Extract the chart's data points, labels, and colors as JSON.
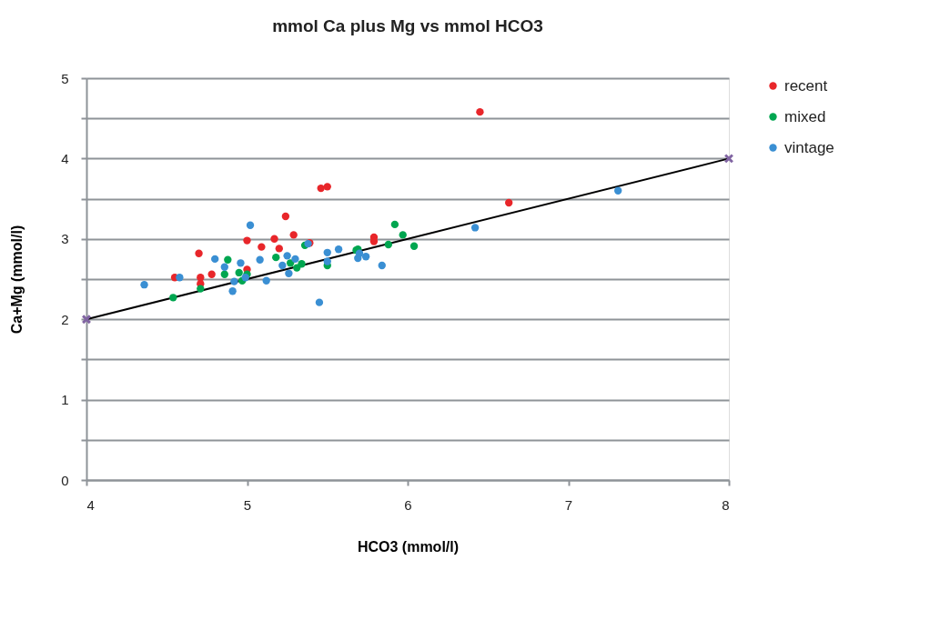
{
  "chart_data": {
    "type": "scatter",
    "title": "mmol Ca plus Mg vs mmol HCO3",
    "xlabel": "HCO3 (mmol/l)",
    "ylabel": "Ca+Mg (mmol/l)",
    "xlim": [
      4,
      8
    ],
    "xticks": [
      4,
      5,
      6,
      7,
      8
    ],
    "ylim": [
      0,
      5
    ],
    "yticks": [
      0,
      {
        "value": 0.5,
        "label": null
      },
      1,
      {
        "value": 1.5,
        "label": null
      },
      2,
      {
        "value": 2.5,
        "label": null
      },
      3,
      {
        "value": 3.5,
        "label": null
      },
      4,
      {
        "value": 4.5,
        "label": null
      },
      5
    ],
    "grid": "y",
    "legend": "right",
    "marker": "circle",
    "series": [
      {
        "name": "recent",
        "color": "#e8262a",
        "x": [
          4.55,
          4.7,
          4.71,
          4.71,
          4.78,
          5.0,
          5.0,
          5.09,
          5.17,
          5.2,
          5.24,
          5.29,
          5.39,
          5.46,
          5.5,
          5.79,
          5.79,
          6.45,
          6.63
        ],
        "values": [
          2.52,
          2.82,
          2.52,
          2.44,
          2.56,
          2.98,
          2.62,
          2.9,
          3.0,
          2.88,
          3.28,
          3.05,
          2.95,
          3.63,
          3.65,
          3.02,
          2.97,
          4.58,
          3.45
        ]
      },
      {
        "name": "mixed",
        "color": "#00a650",
        "x": [
          4.54,
          4.71,
          4.86,
          4.88,
          4.95,
          4.97,
          5.0,
          5.18,
          5.27,
          5.31,
          5.34,
          5.36,
          5.5,
          5.68,
          5.69,
          5.88,
          5.92,
          5.97,
          6.04
        ],
        "values": [
          2.27,
          2.38,
          2.56,
          2.74,
          2.58,
          2.48,
          2.56,
          2.77,
          2.7,
          2.64,
          2.69,
          2.92,
          2.67,
          2.86,
          2.87,
          2.93,
          3.18,
          3.05,
          2.91
        ]
      },
      {
        "name": "vintage",
        "color": "#3a8fd3",
        "x": [
          4.36,
          4.58,
          4.8,
          4.86,
          4.91,
          4.92,
          4.96,
          4.99,
          5.02,
          5.08,
          5.12,
          5.22,
          5.25,
          5.26,
          5.3,
          5.38,
          5.5,
          5.5,
          5.57,
          5.69,
          5.7,
          5.74,
          5.84,
          5.45,
          6.42,
          7.31
        ],
        "values": [
          2.43,
          2.52,
          2.75,
          2.65,
          2.35,
          2.47,
          2.7,
          2.52,
          3.17,
          2.74,
          2.48,
          2.67,
          2.79,
          2.57,
          2.75,
          2.94,
          2.83,
          2.72,
          2.87,
          2.76,
          2.82,
          2.78,
          2.67,
          2.21,
          3.14,
          3.6
        ]
      },
      {
        "type": "line",
        "color": "#000000",
        "marker": "none",
        "x": [
          4,
          8
        ],
        "values": [
          2,
          4
        ]
      },
      {
        "color": "#8064a2",
        "marker": "cross",
        "x": [
          4,
          8
        ],
        "values": [
          2,
          4
        ]
      }
    ]
  }
}
